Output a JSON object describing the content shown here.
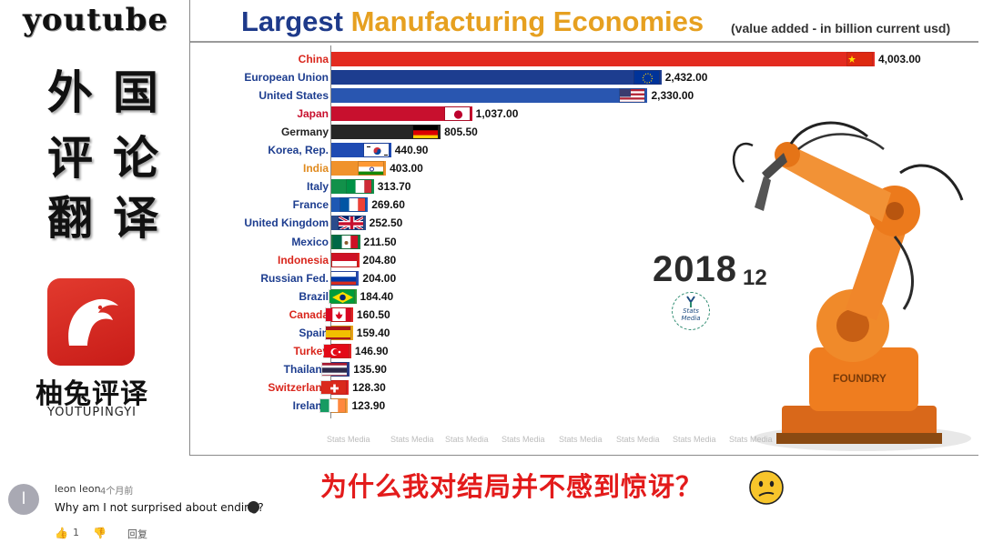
{
  "watermark": {
    "yt_title": "youtube",
    "cn_line_1": "外国",
    "cn_line_2": "评论",
    "cn_line_3": "翻译",
    "brand_cn": "柚兔评译",
    "brand_en": "YOUTUPINGYI"
  },
  "chart_header": {
    "title_part_1": "Largest",
    "title_part_2": "Manufacturing Economies",
    "subtitle": "(value added - in billion current usd)"
  },
  "chart_data": {
    "type": "bar",
    "orientation": "horizontal",
    "title": "Largest Manufacturing Economies",
    "subtitle": "(value added - in billion current usd)",
    "year": "2018",
    "month": "12",
    "categories": [
      "China",
      "European Union",
      "United States",
      "Japan",
      "Germany",
      "Korea, Rep.",
      "India",
      "Italy",
      "France",
      "United Kingdom",
      "Mexico",
      "Indonesia",
      "Russian Fed.",
      "Brazil",
      "Canada",
      "Spain",
      "Turkey",
      "Thailand",
      "Switzerland",
      "Ireland"
    ],
    "values": [
      4003.0,
      2432.0,
      2330.0,
      1037.0,
      805.5,
      440.9,
      403.0,
      313.7,
      269.6,
      252.5,
      211.5,
      204.8,
      204.0,
      184.4,
      160.5,
      159.4,
      146.9,
      135.9,
      128.3,
      123.9
    ],
    "value_labels": [
      "4,003.00",
      "2,432.00",
      "2,330.00",
      "1,037.00",
      "805.50",
      "440.90",
      "403.00",
      "313.70",
      "269.60",
      "252.50",
      "211.50",
      "204.80",
      "204.00",
      "184.40",
      "160.50",
      "159.40",
      "146.90",
      "135.90",
      "128.30",
      "123.90"
    ],
    "bar_colors": [
      "#e32b20",
      "#1d3d8f",
      "#2956b0",
      "#c8102e",
      "#262626",
      "#1f4bb3",
      "#f0922b",
      "#12914a",
      "#1f58b3",
      "#2b4c8c",
      "#1a7f45",
      "#e02020",
      "#2d4fb3",
      "#2a9a3a",
      "#e02424",
      "#e8a417",
      "#e02424",
      "#2b3f8c",
      "#e02424",
      "#f39a3c"
    ],
    "label_colors": [
      "#d9261c",
      "#1d3d8f",
      "#1d3d8f",
      "#c8102e",
      "#222222",
      "#1d3d8f",
      "#e08a1e",
      "#1d3d8f",
      "#1d3d8f",
      "#1d3d8f",
      "#1d3d8f",
      "#d9261c",
      "#1d3d8f",
      "#1d3d8f",
      "#d9261c",
      "#1d3d8f",
      "#d9261c",
      "#1d3d8f",
      "#d9261c",
      "#1d3d8f"
    ],
    "flags": [
      "china",
      "eu",
      "usa",
      "japan",
      "germany",
      "korea",
      "india",
      "italy",
      "france",
      "uk",
      "mexico",
      "indonesia",
      "russia",
      "brazil",
      "canada",
      "spain",
      "turkey",
      "thailand",
      "switzerland",
      "ireland"
    ],
    "grid": false,
    "axis_labels": false
  },
  "stats_logo_text": "Stats Media",
  "watermark_repeat": "Stats Media",
  "comment": {
    "avatar_letter": "l",
    "author": "leon leon",
    "time": "4个月前",
    "text": "Why am I not surprised about ending?",
    "like_count": "1",
    "reply_label": "回复",
    "icons": [
      "thumbs-up-icon",
      "thumbs-down-icon",
      "emoji-icon"
    ]
  },
  "caption": "为什么我对结局并不感到惊讶？",
  "colors": {
    "title_blue": "#1e3a8a",
    "title_orange": "#e6a020",
    "caption_red": "#e31b1b",
    "logo_red": "#d42a22"
  }
}
